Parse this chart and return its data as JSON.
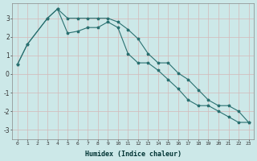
{
  "xlabel": "Humidex (Indice chaleur)",
  "background_color": "#cce8e8",
  "line_color": "#2a7070",
  "grid_color": "#b0d8d8",
  "xlim": [
    -0.5,
    23.5
  ],
  "ylim": [
    -3.5,
    3.8
  ],
  "yticks": [
    -3,
    -2,
    -1,
    0,
    1,
    2,
    3
  ],
  "xticks": [
    0,
    1,
    2,
    3,
    4,
    5,
    6,
    7,
    8,
    9,
    10,
    11,
    12,
    13,
    14,
    15,
    16,
    17,
    18,
    19,
    20,
    21,
    22,
    23
  ],
  "series1_x": [
    0,
    1,
    3,
    4,
    5,
    6,
    7,
    8,
    9,
    10,
    11,
    12,
    13,
    14,
    15,
    16,
    17,
    18,
    19,
    20,
    21,
    22,
    23
  ],
  "series1_y": [
    0.5,
    1.6,
    3.0,
    3.5,
    3.0,
    3.0,
    3.0,
    3.0,
    3.0,
    2.8,
    2.4,
    1.9,
    1.1,
    0.6,
    0.6,
    0.05,
    -0.3,
    -0.85,
    -1.4,
    -1.7,
    -1.7,
    -2.0,
    -2.6
  ],
  "series2_x": [
    0,
    1,
    3,
    4,
    5,
    6,
    7,
    8,
    9,
    10,
    11,
    12,
    13,
    14,
    15,
    16,
    17,
    18,
    19,
    20,
    21,
    22,
    23
  ],
  "series2_y": [
    0.5,
    1.6,
    3.0,
    3.5,
    2.2,
    2.3,
    2.5,
    2.5,
    2.8,
    2.5,
    1.1,
    0.6,
    0.6,
    0.2,
    -0.3,
    -0.8,
    -1.4,
    -1.7,
    -1.7,
    -2.0,
    -2.3,
    -2.6,
    -2.6
  ]
}
